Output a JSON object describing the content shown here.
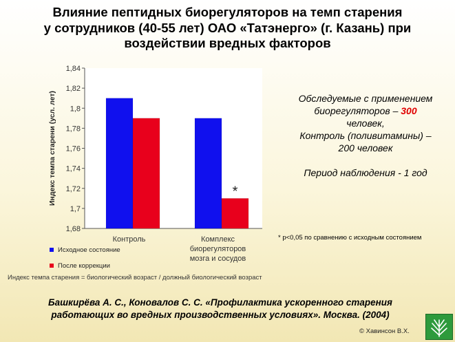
{
  "title_lines": [
    "Влияние пептидных биорегуляторов на темп старения",
    "у сотрудников (40-55 лет) ОАО «Татэнерго» (г. Казань) при",
    "воздействии вредных факторов"
  ],
  "side_note": {
    "line1": "Обследуемые с применением",
    "line2_prefix": "биорегуляторов – ",
    "line2_number": "300",
    "line3": "человек,",
    "line4": "Контроль (поливитамины) –",
    "line5": "200 человек",
    "line6": "Период наблюдения -  1 год"
  },
  "significance_note": "* p<0,05 по сравнению с исходным состоянием",
  "formula_note": "Индекс темпа старения = биологический возраст / должный биологический возраст",
  "citation_lines": [
    "Башкирёва А. С., Коновалов С. С. «Профилактика ускоренного старения",
    "работающих во вредных производственных условиях». Москва. (2004)"
  ],
  "copyright": "© Хавинсон В.Х.",
  "colors": {
    "series1": "#1010ee",
    "series2": "#e8001c",
    "side_highlight": "#e00000"
  },
  "chart_data": {
    "type": "bar",
    "ylabel": "Индекс темпа старени (усл. лет)",
    "ylim": [
      1.68,
      1.84
    ],
    "yticks": [
      1.68,
      1.7,
      1.72,
      1.74,
      1.76,
      1.78,
      1.8,
      1.82,
      1.84
    ],
    "ytick_labels": [
      "1,68",
      "1,7",
      "1,72",
      "1,74",
      "1,76",
      "1,78",
      "1,8",
      "1,82",
      "1,84"
    ],
    "grid": false,
    "legend_position": "bottom-left",
    "categories": [
      [
        "Контроль"
      ],
      [
        "Комплекс",
        "биорегуляторов",
        "мозга и сосудов"
      ]
    ],
    "series": [
      {
        "name": "Исходное состояние",
        "values": [
          1.81,
          1.79
        ]
      },
      {
        "name": "После коррекции",
        "values": [
          1.79,
          1.71
        ]
      }
    ],
    "annotations": [
      {
        "category_index": 1,
        "series_index": 1,
        "text": "*"
      }
    ]
  }
}
